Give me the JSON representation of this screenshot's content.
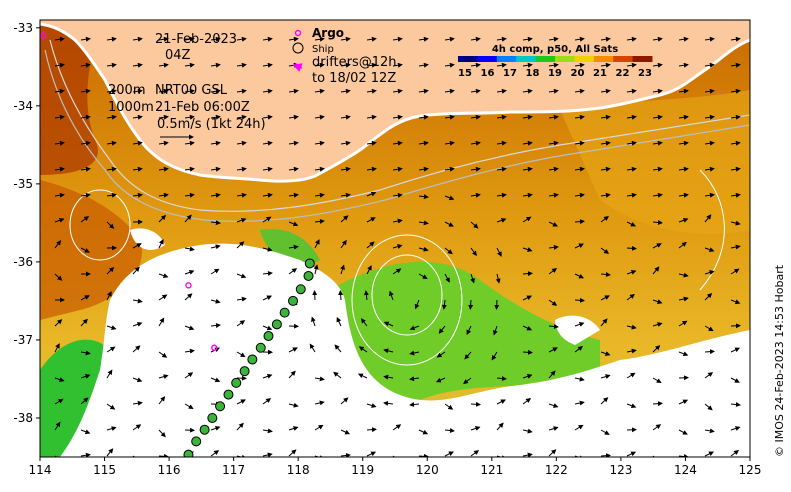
{
  "map": {
    "date": "21-Feb-2023",
    "hour": "04Z",
    "depth_line1": "200m",
    "depth_line2": "1000m",
    "product": "NRT00 GSL",
    "product_time": "21-Feb 06:00Z",
    "scale_label": "0.5m/s (1kt 24h)",
    "credit": "© IMOS 24-Feb-2023 14:53 Hobart",
    "lon_range": [
      114,
      125
    ],
    "lat_range": [
      -38.5,
      -32.9
    ],
    "x_ticks": [
      "114",
      "115",
      "116",
      "117",
      "118",
      "119",
      "120",
      "121",
      "122",
      "123",
      "124",
      "125"
    ],
    "y_ticks": [
      "-33",
      "-34",
      "-35",
      "-36",
      "-37",
      "-38"
    ]
  },
  "legend": {
    "argo": "Argo",
    "ship": "Ship",
    "drifters_line1": "drifters@12h",
    "drifters_line2": "to 18/02 12Z",
    "colors": {
      "argo": "#ff00ff",
      "ship": "#000000",
      "drifters": "#ff00ff"
    }
  },
  "colorbar": {
    "title": "4h comp, p50, All Sats",
    "labels": [
      "15",
      "16",
      "17",
      "18",
      "19",
      "20",
      "21",
      "22",
      "23"
    ],
    "colors": [
      "#00007f",
      "#0000ff",
      "#0080ff",
      "#00c8c8",
      "#1ec81e",
      "#a0dc14",
      "#f0d200",
      "#f09000",
      "#d04800",
      "#8b1a00"
    ]
  },
  "argo_floats": [
    {
      "lon": 116.3,
      "lat": -36.3
    },
    {
      "lon": 116.7,
      "lat": -37.1
    },
    {
      "lon": 114.05,
      "lat": -33.1
    }
  ],
  "ship_track": [
    {
      "lon": 116.3,
      "lat": -38.47
    },
    {
      "lon": 116.42,
      "lat": -38.3
    },
    {
      "lon": 116.55,
      "lat": -38.15
    },
    {
      "lon": 116.67,
      "lat": -38.0
    },
    {
      "lon": 116.79,
      "lat": -37.85
    },
    {
      "lon": 116.92,
      "lat": -37.7
    },
    {
      "lon": 117.04,
      "lat": -37.55
    },
    {
      "lon": 117.17,
      "lat": -37.4
    },
    {
      "lon": 117.29,
      "lat": -37.25
    },
    {
      "lon": 117.42,
      "lat": -37.1
    },
    {
      "lon": 117.54,
      "lat": -36.95
    },
    {
      "lon": 117.67,
      "lat": -36.8
    },
    {
      "lon": 117.79,
      "lat": -36.65
    },
    {
      "lon": 117.92,
      "lat": -36.5
    },
    {
      "lon": 118.04,
      "lat": -36.35
    },
    {
      "lon": 118.16,
      "lat": -36.18
    },
    {
      "lon": 118.18,
      "lat": -36.02
    }
  ]
}
